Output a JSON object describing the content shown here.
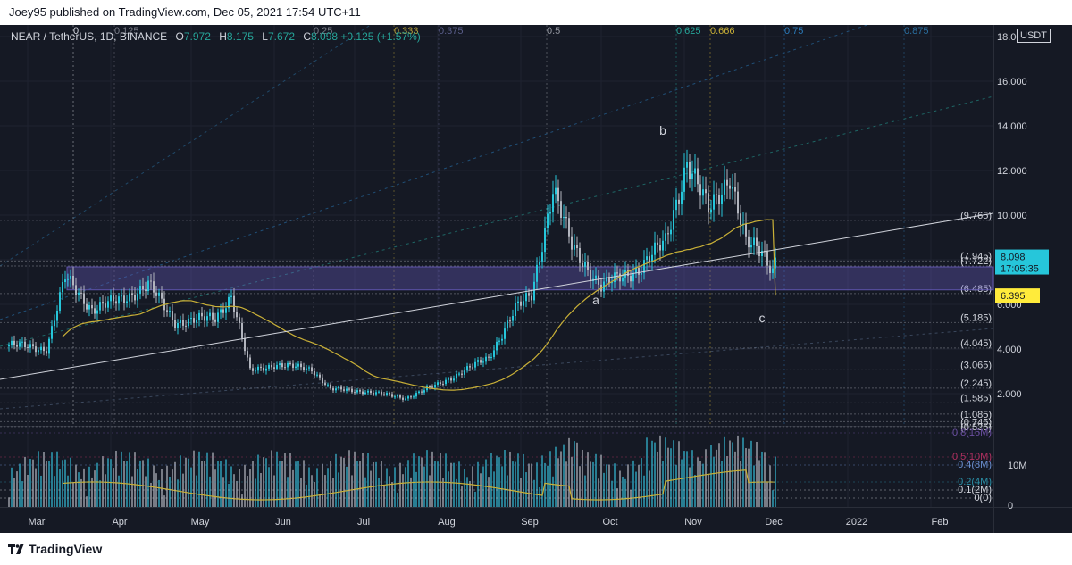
{
  "header": {
    "published_text": "Joey95 published on TradingView.com, Dec 05, 2021 17:54 UTC+11"
  },
  "legend": {
    "symbol": "NEAR / TetherUS, 1D, BINANCE",
    "open_label": "O",
    "open": "7.972",
    "high_label": "H",
    "high": "8.175",
    "low_label": "L",
    "low": "7.672",
    "close_label": "C",
    "close": "8.098",
    "change": "+0.125 (+1.57%)"
  },
  "currency_badge": "USDT",
  "footer": {
    "brand": "TradingView"
  },
  "colors": {
    "background": "#151924",
    "up": "#26c6da",
    "down": "#b2b5be",
    "ma": "#c9b037",
    "zone": "#6c5fc7",
    "trendline": "#d1d4dc",
    "price_label": "#26c6da",
    "ma_label": "#ffeb3b"
  },
  "chart_data": {
    "type": "candlestick",
    "title": "NEAR / TetherUS, 1D, BINANCE",
    "x_ticks": [
      "Mar",
      "Apr",
      "May",
      "Jun",
      "Jul",
      "Aug",
      "Sep",
      "Oct",
      "Nov",
      "Dec",
      "2022",
      "Feb"
    ],
    "y_ticks": [
      "2.000",
      "4.000",
      "6.000",
      "8.000",
      "10.000",
      "12.000",
      "14.000",
      "16.000",
      "18.000"
    ],
    "ylim": [
      0.5,
      18
    ],
    "fib_time_labels": [
      {
        "label": "0",
        "color": "#d1d4dc"
      },
      {
        "label": "0.125",
        "color": "#787b86"
      },
      {
        "label": "0.25",
        "color": "#787b86"
      },
      {
        "label": "0.333",
        "color": "#b29d3a"
      },
      {
        "label": "0.375",
        "color": "#5a5e8a"
      },
      {
        "label": "0.5",
        "color": "#9598a1"
      },
      {
        "label": "0.625",
        "color": "#26a69a"
      },
      {
        "label": "0.666",
        "color": "#c9b037"
      },
      {
        "label": "0.75",
        "color": "#2a7bbb"
      },
      {
        "label": "0.875",
        "color": "#2a6fa0"
      }
    ],
    "horizontal_levels": [
      {
        "label": "(9.765)",
        "value": 9.765
      },
      {
        "label": "(7.945)",
        "value": 7.945
      },
      {
        "label": "(7.722)",
        "value": 7.72
      },
      {
        "label": "(6.485)",
        "value": 6.485
      },
      {
        "label": "(5.185)",
        "value": 5.185
      },
      {
        "label": "(4.045)",
        "value": 4.045
      },
      {
        "label": "(3.065)",
        "value": 3.065
      },
      {
        "label": "(2.245)",
        "value": 2.245
      },
      {
        "label": "(1.585)",
        "value": 1.585
      },
      {
        "label": "(1.085)",
        "value": 1.085
      },
      {
        "label": "(0.745)",
        "value": 0.745
      },
      {
        "label": "(0.525)",
        "value": 0.525
      }
    ],
    "supply_zone": [
      6.65,
      7.68
    ],
    "wave_labels": [
      {
        "label": "a",
        "date_index": 219,
        "value": 6.0
      },
      {
        "label": "b",
        "date_index": 244,
        "value": 13.6
      },
      {
        "label": "c",
        "date_index": 281,
        "value": 5.2
      }
    ],
    "last_price": {
      "value": 8.098,
      "label": "8.098",
      "countdown": "17:05:35"
    },
    "ma_value": {
      "value": 6.395,
      "label": "6.395"
    },
    "volume": {
      "y_labels": [
        "10M",
        "0"
      ],
      "fib_labels": [
        "0.8(16M)",
        "0.5(10M)",
        "0.4(8M)",
        "0.2(4M)",
        "0.1(2M)",
        "0(0)"
      ]
    },
    "anchors": [
      {
        "date": "2021-02-22",
        "close": 4.2
      },
      {
        "date": "2021-03-08",
        "close": 4.0
      },
      {
        "date": "2021-03-15",
        "close": 7.2
      },
      {
        "date": "2021-03-25",
        "close": 5.8
      },
      {
        "date": "2021-04-05",
        "close": 6.2
      },
      {
        "date": "2021-04-15",
        "close": 6.9
      },
      {
        "date": "2021-04-25",
        "close": 5.2
      },
      {
        "date": "2021-05-10",
        "close": 5.4
      },
      {
        "date": "2021-05-16",
        "close": 6.4
      },
      {
        "date": "2021-05-23",
        "close": 3.0
      },
      {
        "date": "2021-06-01",
        "close": 3.3
      },
      {
        "date": "2021-06-15",
        "close": 3.1
      },
      {
        "date": "2021-06-22",
        "close": 2.2
      },
      {
        "date": "2021-07-05",
        "close": 2.1
      },
      {
        "date": "2021-07-20",
        "close": 1.8
      },
      {
        "date": "2021-08-01",
        "close": 2.4
      },
      {
        "date": "2021-08-20",
        "close": 3.6
      },
      {
        "date": "2021-08-30",
        "close": 5.8
      },
      {
        "date": "2021-09-05",
        "close": 6.4
      },
      {
        "date": "2021-09-13",
        "close": 11.2
      },
      {
        "date": "2021-09-20",
        "close": 8.6
      },
      {
        "date": "2021-10-01",
        "close": 6.8
      },
      {
        "date": "2021-10-15",
        "close": 7.6
      },
      {
        "date": "2021-10-25",
        "close": 8.8
      },
      {
        "date": "2021-11-02",
        "close": 12.4
      },
      {
        "date": "2021-11-10",
        "close": 10.2
      },
      {
        "date": "2021-11-18",
        "close": 11.8
      },
      {
        "date": "2021-11-24",
        "close": 8.7
      },
      {
        "date": "2021-11-30",
        "close": 8.4
      },
      {
        "date": "2021-12-04",
        "close": 7.6
      },
      {
        "date": "2021-12-05",
        "close": 8.1
      }
    ]
  }
}
